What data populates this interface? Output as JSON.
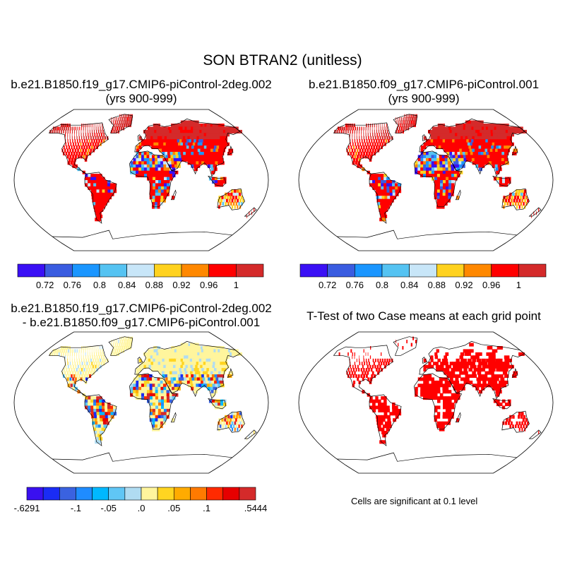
{
  "title": "SON BTRAN2 (unitless)",
  "panels": [
    {
      "title_line1": "b.e21.B1850.f19_g17.CMIP6-piControl-2deg.002",
      "title_line2": "(yrs 900-999)",
      "field": "case1"
    },
    {
      "title_line1": "b.e21.B1850.f09_g17.CMIP6-piControl.001",
      "title_line2": "(yrs 900-999)",
      "field": "case2"
    },
    {
      "title_line1": "b.e21.B1850.f19_g17.CMIP6-piControl-2deg.002",
      "title_line2": "- b.e21.B1850.f09_g17.CMIP6-piControl.001",
      "field": "difference"
    },
    {
      "title_line1": "T-Test of two Case means at each grid point",
      "title_line2": "",
      "field": "significance"
    }
  ],
  "colorbar_main": {
    "colors": [
      "#3a10f5",
      "#3a5ce0",
      "#1a96ff",
      "#55c3f2",
      "#c8e6f8",
      "#ffd21f",
      "#ff8800",
      "#ff0000",
      "#d42a2a"
    ],
    "labels": [
      "0.72",
      "0.76",
      "0.8",
      "0.84",
      "0.88",
      "0.92",
      "0.96",
      "1"
    ]
  },
  "colorbar_diff": {
    "colors": [
      "#3a10f0",
      "#1a2cf5",
      "#3a62e0",
      "#1f8cff",
      "#00b8ff",
      "#60c6f5",
      "#b0dcf2",
      "#fff59d",
      "#ffd521",
      "#ffab00",
      "#ff7a00",
      "#ff2a00",
      "#e60000",
      "#d42a2a"
    ],
    "labels": [
      {
        "text": "-.6291",
        "boundary": 0
      },
      {
        "text": "-.1",
        "boundary": 3
      },
      {
        "text": "-.05",
        "boundary": 5
      },
      {
        "text": ".0",
        "boundary": 7
      },
      {
        "text": ".05",
        "boundary": 9
      },
      {
        "text": ".1",
        "boundary": 11
      },
      {
        "text": ".5444",
        "boundary": 14
      }
    ]
  },
  "significance_color": "#ff0000",
  "footnote": "Cells are significant at 0.1 level"
}
